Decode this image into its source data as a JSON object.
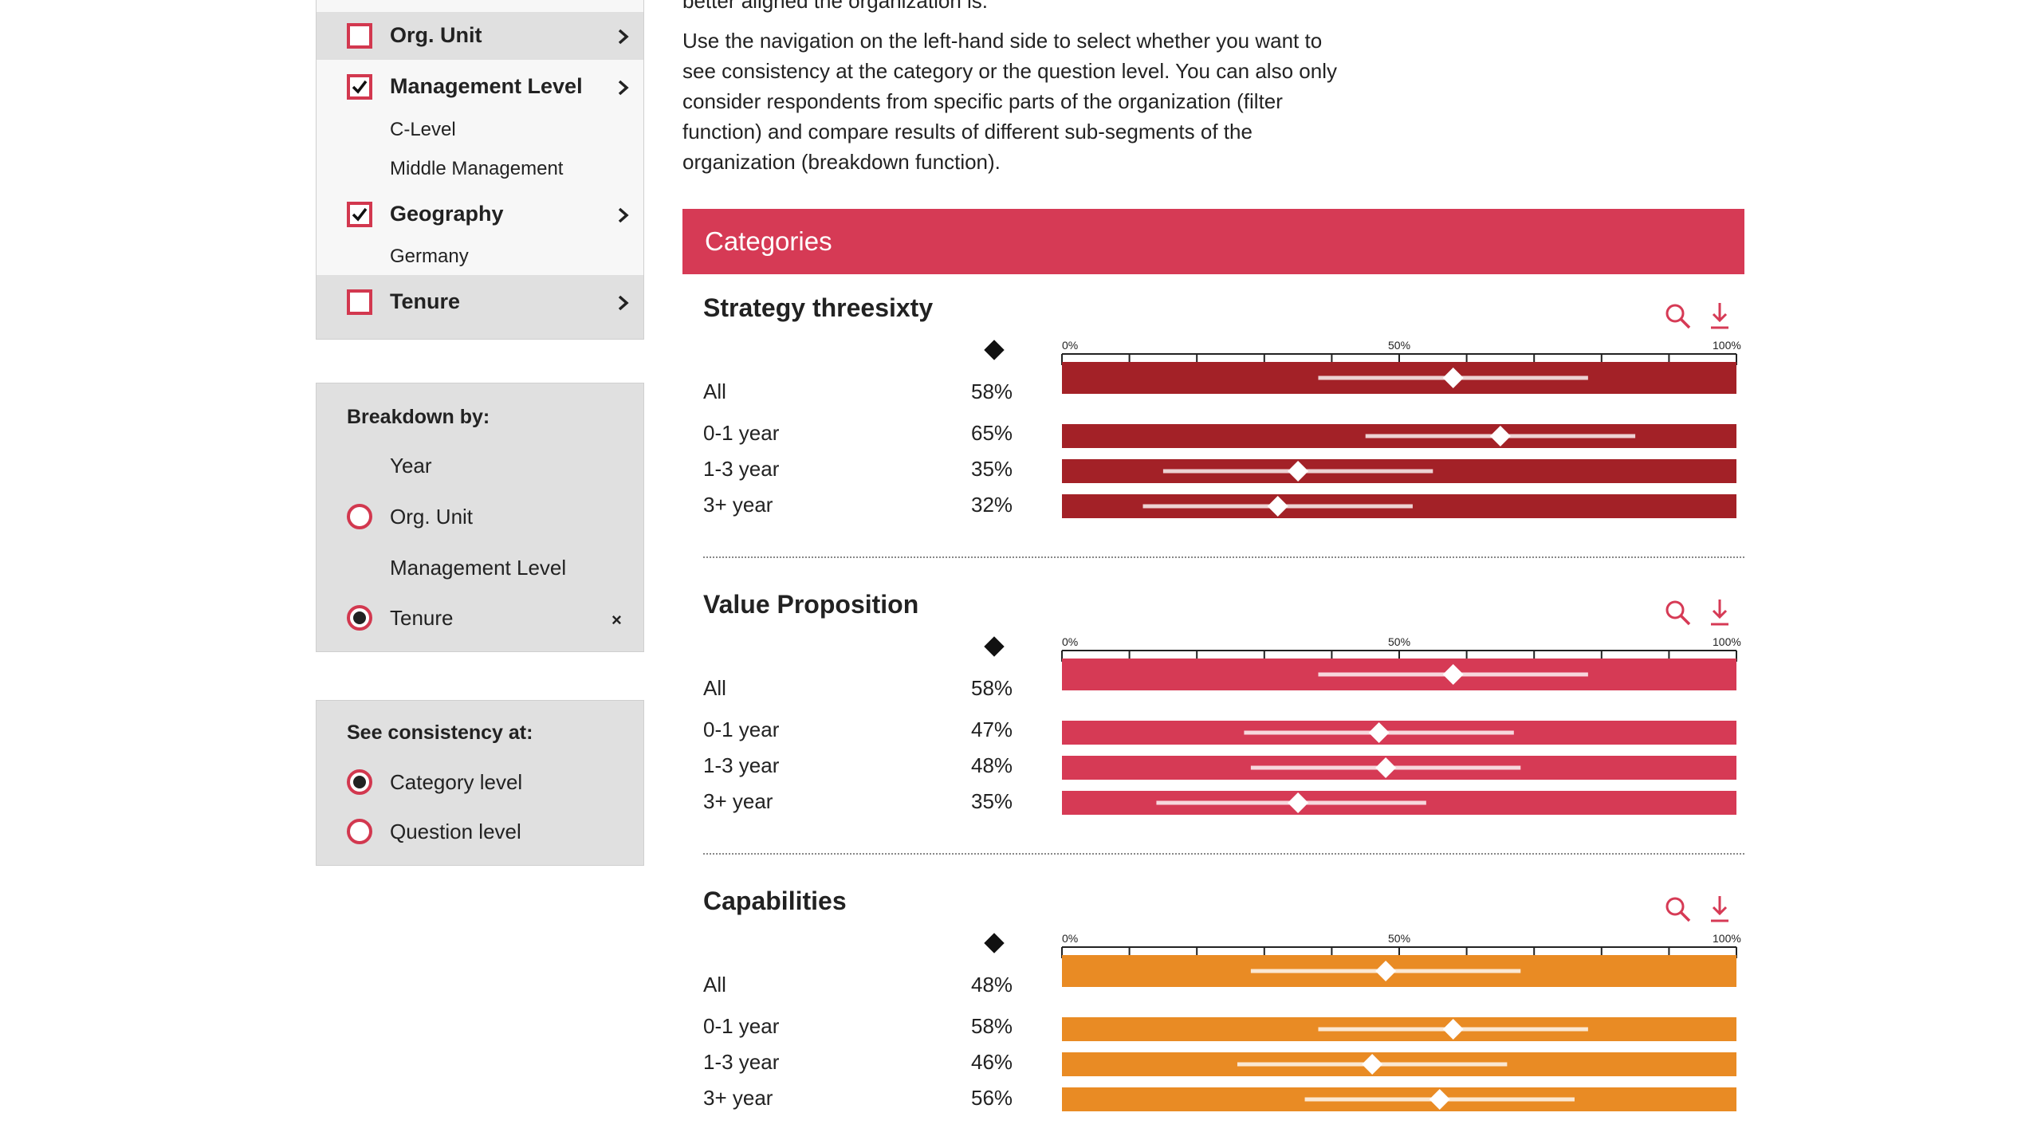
{
  "filter_panel": {
    "items": [
      {
        "label": "Org. Unit",
        "checked": false
      },
      {
        "label": "Management Level",
        "checked": true,
        "children": [
          "C-Level",
          "Middle Management"
        ]
      },
      {
        "label": "Geography",
        "checked": true,
        "children": [
          "Germany"
        ]
      },
      {
        "label": "Tenure",
        "checked": false
      }
    ]
  },
  "breakdown": {
    "title": "Breakdown by:",
    "options": [
      {
        "label": "Year",
        "radio": "none"
      },
      {
        "label": "Org. Unit",
        "radio": "off"
      },
      {
        "label": "Management Level",
        "radio": "none"
      },
      {
        "label": "Tenure",
        "radio": "on",
        "clear": "×"
      }
    ]
  },
  "consistency": {
    "title": "See consistency at:",
    "options": [
      {
        "label": "Category level",
        "selected": true
      },
      {
        "label": "Question level",
        "selected": false
      }
    ]
  },
  "intro": {
    "top_line": "better aligned the organization is.",
    "lines": [
      "Use the navigation on the left-hand side to select whether you want to",
      "see consistency at the category or the question level. You can also only",
      "consider respondents from specific parts of the organization (filter",
      "function) and compare results of different sub-segments of the",
      "organization (breakdown function)."
    ]
  },
  "categories_header": "Categories",
  "axis": {
    "ticks": [
      "0%",
      "50%",
      "100%"
    ]
  },
  "icons": {
    "search": "search-icon",
    "download": "download-icon"
  },
  "colors": {
    "accent": "#d63a55",
    "strategy": "#a32127",
    "value": "#d63a55",
    "capabilities": "#e98b24"
  },
  "chart_data": [
    {
      "type": "bar",
      "title": "Strategy threesixty",
      "categories": [
        "All",
        "0-1 year",
        "1-3 year",
        "3+ year"
      ],
      "values": [
        58,
        65,
        35,
        32
      ],
      "value_labels": [
        "58%",
        "65%",
        "35%",
        "32%"
      ],
      "ranges": [
        [
          38,
          78
        ],
        [
          45,
          85
        ],
        [
          15,
          55
        ],
        [
          12,
          52
        ]
      ],
      "xlim": [
        0,
        100
      ]
    },
    {
      "type": "bar",
      "title": "Value Proposition",
      "categories": [
        "All",
        "0-1 year",
        "1-3 year",
        "3+ year"
      ],
      "values": [
        58,
        47,
        48,
        35
      ],
      "value_labels": [
        "58%",
        "47%",
        "48%",
        "35%"
      ],
      "ranges": [
        [
          38,
          78
        ],
        [
          27,
          67
        ],
        [
          28,
          68
        ],
        [
          14,
          54
        ]
      ],
      "xlim": [
        0,
        100
      ]
    },
    {
      "type": "bar",
      "title": "Capabilities",
      "categories": [
        "All",
        "0-1 year",
        "1-3 year",
        "3+ year"
      ],
      "values": [
        48,
        58,
        46,
        56
      ],
      "value_labels": [
        "48%",
        "58%",
        "46%",
        "56%"
      ],
      "ranges": [
        [
          28,
          68
        ],
        [
          38,
          78
        ],
        [
          26,
          66
        ],
        [
          36,
          76
        ]
      ],
      "xlim": [
        0,
        100
      ]
    }
  ]
}
